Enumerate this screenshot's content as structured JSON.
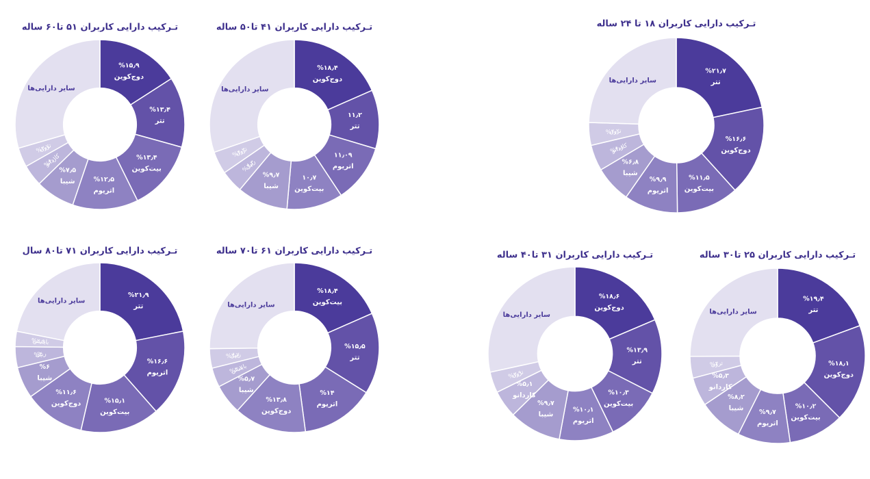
{
  "chart_data": [
    {
      "type": "donut",
      "title": "تـرکیب دارایی کاربران ۱۸ تا ۲۴ ساله",
      "categories": [
        "تتر",
        "دوج‌کوین",
        "بیت‌کوین",
        "اتریوم",
        "شیبا",
        "کاردانو",
        "ترون",
        "سایر دارایی‌ها"
      ],
      "values": [
        21.7,
        16.6,
        11.5,
        9.9,
        6.8,
        4.8,
        4.2,
        24.5
      ],
      "value_labels": [
        "%۲۱٫۷",
        "%۱۶٫۶",
        "%۱۱٫۵",
        "%۹٫۹",
        "%۶٫۸",
        "%۴٫۸",
        "%۴٫۲",
        null
      ],
      "colors": [
        "#4b3b9b",
        "#6352a8",
        "#7a6bb6",
        "#8e82c2",
        "#a59cce",
        "#bdb6dc",
        "#d0cbe6",
        "#e3e0f0"
      ]
    },
    {
      "type": "donut",
      "title": "تـرکیب دارایی کاربران ۲۵ تا۳۰ ساله",
      "categories": [
        "تتر",
        "دوج‌کوین",
        "بیت‌کوین",
        "اتریوم",
        "شیبا",
        "کاردانو",
        "ترون",
        "سایر دارایی‌ها"
      ],
      "values": [
        19.4,
        18.1,
        10.2,
        9.7,
        8.2,
        5.3,
        4,
        25.1
      ],
      "value_labels": [
        "%۱۹٫۴",
        "%۱۸٫۱",
        "%۱۰٫۲",
        "%۹٫۷",
        "%۸٫۲",
        "%۵٫۳",
        "%۴",
        null
      ],
      "colors": [
        "#4b3b9b",
        "#6352a8",
        "#7a6bb6",
        "#8e82c2",
        "#a59cce",
        "#bdb6dc",
        "#d0cbe6",
        "#e3e0f0"
      ]
    },
    {
      "type": "donut",
      "title": "تـرکیب دارایی کاربران ۳۱ تا۴۰ ساله",
      "categories": [
        "دوج‌کوین",
        "تتر",
        "بیت‌کوین",
        "اتریوم",
        "شیبا",
        "کاردانو",
        "ترون",
        "سایر دارایی‌ها"
      ],
      "values": [
        18.6,
        13.9,
        10.3,
        10.1,
        9.7,
        5.1,
        3.9,
        28.4
      ],
      "value_labels": [
        "%۱۸٫۶",
        "%۱۳٫۹",
        "%۱۰٫۳",
        "%۱۰٫۱",
        "%۹٫۷",
        "%۵٫۱",
        "%۳٫۹",
        null
      ],
      "colors": [
        "#4b3b9b",
        "#6352a8",
        "#7a6bb6",
        "#8e82c2",
        "#a59cce",
        "#bdb6dc",
        "#d0cbe6",
        "#e3e0f0"
      ]
    },
    {
      "type": "donut",
      "title": "تـرکیب دارایی کاربران ۴۱ تا۵۰ ساله",
      "categories": [
        "دوج‌کوین",
        "تتر",
        "اتریوم",
        "بیت‌کوین",
        "شیبا",
        "ریپل",
        "ترون",
        "سایر دارایی‌ها"
      ],
      "values": [
        18.4,
        11.2,
        11.09,
        10.7,
        9.7,
        4.3,
        4.3,
        30.3
      ],
      "value_labels": [
        "%۱۸٫۴",
        "۱۱٫۲",
        "۱۱٫۰۹",
        "۱۰٫۷",
        "%۹٫۷",
        "%۴٫۳",
        "%۴٫۳",
        null
      ],
      "colors": [
        "#4b3b9b",
        "#6352a8",
        "#7a6bb6",
        "#8e82c2",
        "#a59cce",
        "#bdb6dc",
        "#d0cbe6",
        "#e3e0f0"
      ]
    },
    {
      "type": "donut",
      "title": "تـرکیب دارایی کاربران ۵۱ تا۶۰ ساله",
      "categories": [
        "دوج‌کوین",
        "تتر",
        "بیت‌کوین",
        "اتریوم",
        "شیبا",
        "کاردانو",
        "ترون",
        "سایر دارایی‌ها"
      ],
      "values": [
        15.9,
        13.4,
        13.4,
        12.5,
        7.5,
        4.1,
        3.7,
        29.5
      ],
      "value_labels": [
        "%۱۵٫۹",
        "%۱۳٫۴",
        "%۱۳٫۴",
        "%۱۲٫۵",
        "%۷٫۵",
        "%۴٫۱",
        "%۳٫۷",
        null
      ],
      "colors": [
        "#4b3b9b",
        "#6352a8",
        "#7a6bb6",
        "#8e82c2",
        "#a59cce",
        "#bdb6dc",
        "#d0cbe6",
        "#e3e0f0"
      ]
    },
    {
      "type": "donut",
      "title": "تـرکیب دارایی کاربران ۶۱ تا۷۰ ساله",
      "categories": [
        "بیت‌کوین",
        "تتر",
        "اتریوم",
        "دوج‌کوین",
        "شیبا",
        "بایننس",
        "ریپل",
        "سایر دارایی‌ها"
      ],
      "values": [
        18.4,
        15.5,
        14,
        13.8,
        5.7,
        3.7,
        3.7,
        25.2
      ],
      "value_labels": [
        "%۱۸٫۴",
        "%۱۵٫۵",
        "%۱۴",
        "%۱۳٫۸",
        "%۵٫۷",
        "%۳٫۷",
        "%۳٫۷",
        null
      ],
      "colors": [
        "#4b3b9b",
        "#6352a8",
        "#7a6bb6",
        "#8e82c2",
        "#a59cce",
        "#bdb6dc",
        "#d0cbe6",
        "#e3e0f0"
      ]
    },
    {
      "type": "donut",
      "title": "تـرکیب دارایی کاربران ۷۱ تا۸۰ سال",
      "categories": [
        "تتر",
        "اتریوم",
        "بیت‌کوین",
        "دوج‌کوین",
        "شیبا",
        "ریپل",
        "بایننس",
        "سایر دارایی‌ها"
      ],
      "values": [
        21.9,
        16.6,
        15.1,
        11.6,
        6,
        4,
        2.9,
        21.9
      ],
      "value_labels": [
        "%۲۱٫۹",
        "%۱۶٫۶",
        "%۱۵٫۱",
        "%۱۱٫۶",
        "%۶",
        "%۴",
        "%۲٫۹",
        null
      ],
      "colors": [
        "#4b3b9b",
        "#6352a8",
        "#7a6bb6",
        "#8e82c2",
        "#a59cce",
        "#bdb6dc",
        "#d0cbe6",
        "#e3e0f0"
      ]
    }
  ]
}
